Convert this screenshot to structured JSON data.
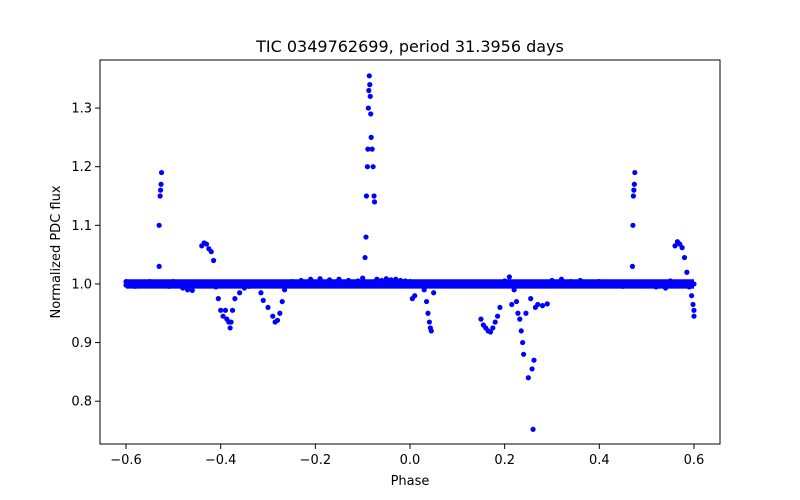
{
  "chart_data": {
    "type": "scatter",
    "title": "TIC 0349762699, period 31.3956 days",
    "xlabel": "Phase",
    "ylabel": "Normalized PDC flux",
    "xlim": [
      -0.655,
      0.655
    ],
    "ylim": [
      0.727,
      1.382
    ],
    "xticks": [
      -0.6,
      -0.4,
      -0.2,
      0.0,
      0.2,
      0.4,
      0.6
    ],
    "xtick_labels": [
      "−0.6",
      "−0.4",
      "−0.2",
      "0.0",
      "0.2",
      "0.4",
      "0.6"
    ],
    "yticks": [
      0.8,
      0.9,
      1.0,
      1.1,
      1.2,
      1.3
    ],
    "ytick_labels": [
      "0.8",
      "0.9",
      "1.0",
      "1.1",
      "1.2",
      "1.3"
    ],
    "grid": false,
    "series": [
      {
        "name": "flux",
        "color": "#0000ff",
        "points": [
          [
            -0.6,
            1.004
          ],
          [
            -0.6,
            0.998
          ],
          [
            -0.59,
            1.002
          ],
          [
            -0.58,
            0.996
          ],
          [
            -0.57,
            1.003
          ],
          [
            -0.56,
            0.999
          ],
          [
            -0.55,
            1.004
          ],
          [
            -0.54,
            0.997
          ],
          [
            -0.53,
            1.03
          ],
          [
            -0.53,
            1.1
          ],
          [
            -0.528,
            1.15
          ],
          [
            -0.527,
            1.16
          ],
          [
            -0.526,
            1.17
          ],
          [
            -0.525,
            1.19
          ],
          [
            -0.52,
            1.003
          ],
          [
            -0.51,
            0.996
          ],
          [
            -0.5,
            1.004
          ],
          [
            -0.49,
            0.998
          ],
          [
            -0.48,
            0.993
          ],
          [
            -0.47,
            0.99
          ],
          [
            -0.46,
            0.989
          ],
          [
            -0.45,
            1.0
          ],
          [
            -0.44,
            1.065
          ],
          [
            -0.435,
            1.07
          ],
          [
            -0.43,
            1.068
          ],
          [
            -0.425,
            1.06
          ],
          [
            -0.42,
            1.055
          ],
          [
            -0.415,
            1.04
          ],
          [
            -0.41,
            0.995
          ],
          [
            -0.405,
            0.975
          ],
          [
            -0.4,
            0.955
          ],
          [
            -0.395,
            0.945
          ],
          [
            -0.39,
            0.955
          ],
          [
            -0.387,
            0.94
          ],
          [
            -0.383,
            0.935
          ],
          [
            -0.38,
            0.925
          ],
          [
            -0.378,
            0.935
          ],
          [
            -0.375,
            0.955
          ],
          [
            -0.37,
            0.975
          ],
          [
            -0.36,
            0.985
          ],
          [
            -0.35,
            0.993
          ],
          [
            -0.34,
            0.996
          ],
          [
            -0.33,
            0.999
          ],
          [
            -0.32,
            1.003
          ],
          [
            -0.315,
            0.985
          ],
          [
            -0.31,
            0.972
          ],
          [
            -0.3,
            0.96
          ],
          [
            -0.29,
            0.945
          ],
          [
            -0.285,
            0.935
          ],
          [
            -0.28,
            0.938
          ],
          [
            -0.275,
            0.95
          ],
          [
            -0.27,
            0.97
          ],
          [
            -0.265,
            0.99
          ],
          [
            -0.25,
            1.004
          ],
          [
            -0.23,
            1.006
          ],
          [
            -0.21,
            1.008
          ],
          [
            -0.19,
            1.009
          ],
          [
            -0.17,
            1.007
          ],
          [
            -0.15,
            1.008
          ],
          [
            -0.13,
            1.006
          ],
          [
            -0.11,
            1.005
          ],
          [
            -0.1,
            1.01
          ],
          [
            -0.095,
            1.045
          ],
          [
            -0.093,
            1.08
          ],
          [
            -0.092,
            1.15
          ],
          [
            -0.09,
            1.2
          ],
          [
            -0.089,
            1.23
          ],
          [
            -0.088,
            1.3
          ],
          [
            -0.087,
            1.33
          ],
          [
            -0.086,
            1.355
          ],
          [
            -0.085,
            1.34
          ],
          [
            -0.084,
            1.32
          ],
          [
            -0.083,
            1.29
          ],
          [
            -0.082,
            1.25
          ],
          [
            -0.08,
            1.23
          ],
          [
            -0.078,
            1.2
          ],
          [
            -0.076,
            1.15
          ],
          [
            -0.075,
            1.14
          ],
          [
            -0.07,
            1.008
          ],
          [
            -0.06,
            1.006
          ],
          [
            -0.05,
            1.009
          ],
          [
            -0.04,
            1.007
          ],
          [
            -0.03,
            1.008
          ],
          [
            -0.02,
            1.006
          ],
          [
            -0.01,
            1.005
          ],
          [
            0.0,
            1.004
          ],
          [
            0.005,
            0.975
          ],
          [
            0.01,
            0.98
          ],
          [
            0.02,
            1.001
          ],
          [
            0.03,
            0.99
          ],
          [
            0.035,
            0.97
          ],
          [
            0.038,
            0.95
          ],
          [
            0.041,
            0.935
          ],
          [
            0.043,
            0.925
          ],
          [
            0.045,
            0.92
          ],
          [
            0.05,
            0.985
          ],
          [
            0.06,
            1.002
          ],
          [
            0.08,
            1.0
          ],
          [
            0.1,
            1.003
          ],
          [
            0.12,
            0.999
          ],
          [
            0.14,
            1.001
          ],
          [
            0.15,
            0.94
          ],
          [
            0.155,
            0.93
          ],
          [
            0.16,
            0.925
          ],
          [
            0.165,
            0.92
          ],
          [
            0.17,
            0.918
          ],
          [
            0.175,
            0.925
          ],
          [
            0.18,
            0.935
          ],
          [
            0.185,
            0.945
          ],
          [
            0.19,
            0.96
          ],
          [
            0.2,
            1.005
          ],
          [
            0.21,
            1.012
          ],
          [
            0.215,
            0.965
          ],
          [
            0.22,
            0.99
          ],
          [
            0.225,
            0.97
          ],
          [
            0.228,
            0.95
          ],
          [
            0.232,
            0.94
          ],
          [
            0.235,
            0.92
          ],
          [
            0.238,
            0.9
          ],
          [
            0.24,
            0.88
          ],
          [
            0.245,
            0.95
          ],
          [
            0.25,
            0.84
          ],
          [
            0.255,
            0.975
          ],
          [
            0.258,
            0.855
          ],
          [
            0.26,
            0.752
          ],
          [
            0.262,
            0.87
          ],
          [
            0.265,
            0.96
          ],
          [
            0.27,
            0.965
          ],
          [
            0.28,
            0.963
          ],
          [
            0.29,
            0.966
          ],
          [
            0.3,
            1.006
          ],
          [
            0.32,
            1.008
          ],
          [
            0.34,
            1.004
          ],
          [
            0.36,
            1.006
          ],
          [
            0.38,
            1.003
          ],
          [
            0.4,
            1.004
          ],
          [
            0.42,
            1.002
          ],
          [
            0.44,
            1.003
          ],
          [
            0.45,
            0.996
          ],
          [
            0.46,
            1.002
          ],
          [
            0.47,
            1.03
          ],
          [
            0.471,
            1.1
          ],
          [
            0.472,
            1.15
          ],
          [
            0.473,
            1.16
          ],
          [
            0.474,
            1.17
          ],
          [
            0.475,
            1.19
          ],
          [
            0.48,
            1.003
          ],
          [
            0.5,
            0.997
          ],
          [
            0.52,
            0.995
          ],
          [
            0.54,
            0.993
          ],
          [
            0.55,
            1.005
          ],
          [
            0.56,
            1.065
          ],
          [
            0.565,
            1.072
          ],
          [
            0.57,
            1.068
          ],
          [
            0.575,
            1.062
          ],
          [
            0.58,
            1.045
          ],
          [
            0.585,
            1.02
          ],
          [
            0.59,
            0.995
          ],
          [
            0.595,
            0.98
          ],
          [
            0.598,
            0.965
          ],
          [
            0.6,
            0.955
          ],
          [
            0.6,
            0.945
          ],
          [
            0.6,
            1.0
          ]
        ]
      }
    ]
  }
}
